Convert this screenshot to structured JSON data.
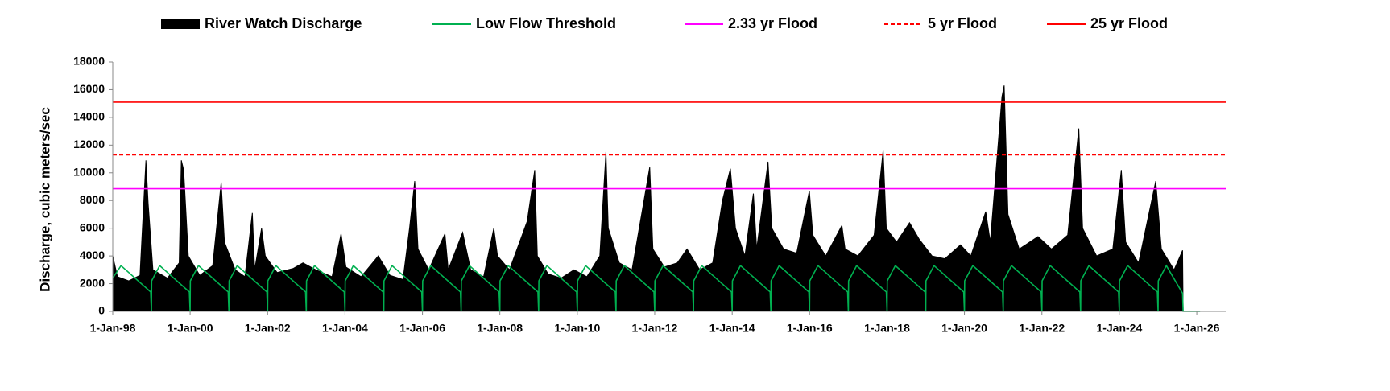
{
  "chart_data": {
    "type": "timeseries",
    "y_label": "Discharge, cubic meters/sec",
    "xlim": [
      "1998-01-01",
      "2026-10-01"
    ],
    "xticks": [
      {
        "value": "1998-01-01",
        "label": "1-Jan-98"
      },
      {
        "value": "2000-01-01",
        "label": "1-Jan-00"
      },
      {
        "value": "2002-01-01",
        "label": "1-Jan-02"
      },
      {
        "value": "2004-01-01",
        "label": "1-Jan-04"
      },
      {
        "value": "2006-01-01",
        "label": "1-Jan-06"
      },
      {
        "value": "2008-01-01",
        "label": "1-Jan-08"
      },
      {
        "value": "2010-01-01",
        "label": "1-Jan-10"
      },
      {
        "value": "2012-01-01",
        "label": "1-Jan-12"
      },
      {
        "value": "2014-01-01",
        "label": "1-Jan-14"
      },
      {
        "value": "2016-01-01",
        "label": "1-Jan-16"
      },
      {
        "value": "2018-01-01",
        "label": "1-Jan-18"
      },
      {
        "value": "2020-01-01",
        "label": "1-Jan-20"
      },
      {
        "value": "2022-01-01",
        "label": "1-Jan-22"
      },
      {
        "value": "2024-01-01",
        "label": "1-Jan-24"
      },
      {
        "value": "2026-01-01",
        "label": "1-Jan-26"
      }
    ],
    "ylim": [
      0,
      18000
    ],
    "yticks": [
      0,
      2000,
      4000,
      6000,
      8000,
      10000,
      12000,
      14000,
      16000,
      18000
    ],
    "grid": false,
    "legend": "top",
    "series": [
      {
        "name": "River Watch Discharge",
        "color": "#000000",
        "type": "area",
        "x": [
          "1998-01-01",
          "1998-02-15",
          "1998-06-01",
          "1998-09-15",
          "1998-11-10",
          "1998-12-01",
          "1999-01-15",
          "1999-06-01",
          "1999-09-20",
          "1999-10-10",
          "1999-11-01",
          "1999-12-15",
          "2000-04-01",
          "2000-08-01",
          "2000-10-20",
          "2000-11-20",
          "2001-03-01",
          "2001-06-01",
          "2001-08-10",
          "2001-09-01",
          "2001-11-05",
          "2001-12-10",
          "2002-04-01",
          "2002-09-01",
          "2002-12-01",
          "2003-04-01",
          "2003-09-01",
          "2003-11-25",
          "2004-01-10",
          "2004-06-01",
          "2004-11-10",
          "2005-03-01",
          "2005-07-01",
          "2005-09-01",
          "2005-10-20",
          "2005-11-20",
          "2006-03-01",
          "2006-08-01",
          "2006-09-01",
          "2007-01-15",
          "2007-04-01",
          "2007-08-01",
          "2007-11-05",
          "2007-12-10",
          "2008-04-01",
          "2008-09-15",
          "2008-11-25",
          "2008-12-20",
          "2009-04-01",
          "2009-08-01",
          "2009-12-01",
          "2010-04-01",
          "2010-08-01",
          "2010-09-28",
          "2010-10-20",
          "2011-02-01",
          "2011-06-01",
          "2011-11-15",
          "2011-12-15",
          "2012-04-01",
          "2012-08-01",
          "2012-11-01",
          "2013-03-01",
          "2013-07-01",
          "2013-10-01",
          "2013-12-15",
          "2014-02-01",
          "2014-05-01",
          "2014-07-20",
          "2014-08-20",
          "2014-12-05",
          "2015-01-10",
          "2015-05-01",
          "2015-09-01",
          "2015-12-30",
          "2016-02-01",
          "2016-06-01",
          "2016-11-01",
          "2016-12-01",
          "2017-04-01",
          "2017-09-01",
          "2017-11-25",
          "2017-12-25",
          "2018-04-01",
          "2018-08-01",
          "2018-11-01",
          "2019-03-01",
          "2019-07-01",
          "2019-11-25",
          "2020-03-01",
          "2020-07-20",
          "2020-09-01",
          "2020-12-20",
          "2021-01-10",
          "2021-02-15",
          "2021-06-01",
          "2021-11-25",
          "2022-04-01",
          "2022-09-01",
          "2022-12-15",
          "2023-01-20",
          "2023-06-01",
          "2023-11-01",
          "2024-01-20",
          "2024-03-01",
          "2024-07-01",
          "2024-12-10",
          "2025-02-01",
          "2025-06-01",
          "2025-08-20",
          "2025-08-25"
        ],
        "values": [
          4000,
          2500,
          2200,
          2600,
          10900,
          7800,
          3000,
          2400,
          3500,
          10900,
          10200,
          4000,
          2600,
          3300,
          9300,
          5000,
          3000,
          2500,
          7100,
          3000,
          6000,
          4000,
          2800,
          3100,
          3500,
          3000,
          2500,
          5600,
          3200,
          2500,
          4000,
          2600,
          2300,
          6000,
          9400,
          4500,
          3000,
          5600,
          3000,
          5700,
          3000,
          2500,
          6000,
          4000,
          3000,
          6500,
          10200,
          4000,
          2700,
          2400,
          3000,
          2500,
          4000,
          11500,
          6000,
          3500,
          3000,
          10400,
          4500,
          3200,
          3500,
          4500,
          3000,
          3500,
          8000,
          10300,
          6000,
          4000,
          8500,
          4500,
          10800,
          6000,
          4500,
          4200,
          8700,
          5500,
          4000,
          6200,
          4500,
          4000,
          5500,
          11600,
          6000,
          5000,
          6400,
          5200,
          4000,
          3800,
          4800,
          4000,
          7200,
          5000,
          15500,
          16300,
          7000,
          4500,
          5400,
          4500,
          5500,
          13200,
          6000,
          4000,
          4500,
          10200,
          5000,
          3500,
          9400,
          4500,
          3000,
          4400,
          0
        ]
      },
      {
        "name": "Low Flow Threshold",
        "color": "#00b050",
        "type": "line",
        "x": [
          "1998-01-01",
          "1998-03-20",
          "1998-12-25",
          "1999-01-01",
          "1999-01-03",
          "1999-03-20",
          "1999-12-25",
          "2000-01-01",
          "2000-01-03",
          "2000-03-20",
          "2000-12-25",
          "2001-01-01",
          "2001-01-03",
          "2001-03-20",
          "2001-12-25",
          "2002-01-01",
          "2002-01-03",
          "2002-03-20",
          "2002-12-25",
          "2003-01-01",
          "2003-01-03",
          "2003-03-20",
          "2003-12-25",
          "2004-01-01",
          "2004-01-03",
          "2004-03-20",
          "2004-12-25",
          "2005-01-01",
          "2005-01-03",
          "2005-03-20",
          "2005-12-25",
          "2006-01-01",
          "2006-01-03",
          "2006-03-20",
          "2006-12-25",
          "2007-01-01",
          "2007-01-03",
          "2007-03-20",
          "2007-12-25",
          "2008-01-01",
          "2008-01-03",
          "2008-03-20",
          "2008-12-25",
          "2009-01-01",
          "2009-01-03",
          "2009-03-20",
          "2009-12-25",
          "2010-01-01",
          "2010-01-03",
          "2010-03-20",
          "2010-12-25",
          "2011-01-01",
          "2011-01-03",
          "2011-03-20",
          "2011-12-25",
          "2012-01-01",
          "2012-01-03",
          "2012-03-20",
          "2012-12-25",
          "2013-01-01",
          "2013-01-03",
          "2013-03-20",
          "2013-12-25",
          "2014-01-01",
          "2014-01-03",
          "2014-03-20",
          "2014-12-25",
          "2015-01-01",
          "2015-01-03",
          "2015-03-20",
          "2015-12-25",
          "2016-01-01",
          "2016-01-03",
          "2016-03-20",
          "2016-12-25",
          "2017-01-01",
          "2017-01-03",
          "2017-03-20",
          "2017-12-25",
          "2018-01-01",
          "2018-01-03",
          "2018-03-20",
          "2018-12-25",
          "2019-01-01",
          "2019-01-03",
          "2019-03-20",
          "2019-12-25",
          "2020-01-01",
          "2020-01-03",
          "2020-03-20",
          "2020-12-25",
          "2021-01-01",
          "2021-01-03",
          "2021-03-20",
          "2021-12-25",
          "2022-01-01",
          "2022-01-03",
          "2022-03-20",
          "2022-12-25",
          "2023-01-01",
          "2023-01-03",
          "2023-03-20",
          "2023-12-25",
          "2024-01-01",
          "2024-01-03",
          "2024-03-20",
          "2024-12-25",
          "2025-01-01",
          "2025-01-03",
          "2025-03-20",
          "2025-08-20",
          "2025-08-25",
          "2026-02-01"
        ],
        "values": [
          2400,
          3300,
          1400,
          0,
          2200,
          3300,
          1400,
          0,
          2200,
          3300,
          1400,
          0,
          2200,
          3300,
          1400,
          0,
          2200,
          3300,
          1400,
          0,
          2200,
          3300,
          1400,
          0,
          2200,
          3300,
          1400,
          0,
          2200,
          3300,
          1400,
          0,
          2200,
          3300,
          1400,
          0,
          2200,
          3300,
          1400,
          0,
          2200,
          3300,
          1400,
          0,
          2200,
          3300,
          1400,
          0,
          2200,
          3300,
          1400,
          0,
          2200,
          3300,
          1400,
          0,
          2200,
          3300,
          1400,
          0,
          2200,
          3300,
          1400,
          0,
          2200,
          3300,
          1400,
          0,
          2200,
          3300,
          1400,
          0,
          2200,
          3300,
          1400,
          0,
          2200,
          3300,
          1400,
          0,
          2200,
          3300,
          1400,
          0,
          2200,
          3300,
          1400,
          0,
          2200,
          3300,
          1400,
          0,
          2200,
          3300,
          1400,
          0,
          2200,
          3300,
          1400,
          0,
          2200,
          3300,
          1400,
          0,
          2200,
          3300,
          1400,
          0,
          2200,
          3300,
          1300,
          0,
          0
        ]
      },
      {
        "name": "2.33 yr Flood",
        "color": "#ff00ff",
        "type": "hline",
        "linestyle": "solid",
        "value": 8850
      },
      {
        "name": "5 yr Flood",
        "color": "#ff0000",
        "type": "hline",
        "linestyle": "dashed",
        "value": 11300
      },
      {
        "name": "25 yr Flood",
        "color": "#ff0000",
        "type": "hline",
        "linestyle": "solid",
        "value": 15100
      }
    ]
  }
}
